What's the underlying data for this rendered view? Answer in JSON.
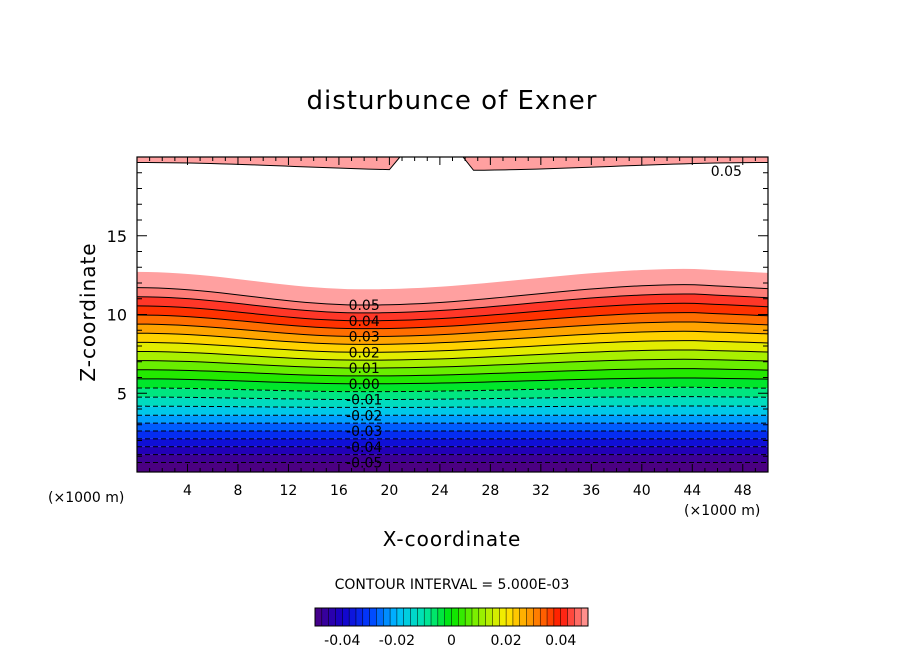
{
  "chart_data": {
    "type": "heatmap",
    "title": "disturbunce of Exner",
    "xlabel": "X-coordinate",
    "ylabel": "Z-coordinate",
    "x_unit": "(×1000 m)",
    "z_unit": "(×1000 m)",
    "xlim": [
      0,
      50
    ],
    "ylim": [
      0,
      20
    ],
    "x_ticks": [
      4,
      8,
      12,
      16,
      20,
      24,
      28,
      32,
      36,
      40,
      44,
      48
    ],
    "y_ticks": [
      5,
      10,
      15
    ],
    "contour_interval_text": "CONTOUR INTERVAL = 5.000E-03",
    "colorbar": {
      "range": [
        -0.05,
        0.05
      ],
      "ticks": [
        "-0.04",
        "-0.02",
        "0",
        "0.02",
        "0.04"
      ],
      "colormap": "rainbow"
    },
    "contour_labels": [
      "0.05",
      "0.05",
      "0.04",
      "0.03",
      "0.02",
      "0.01",
      "0.00",
      "-0.01",
      "-0.02",
      "-0.03",
      "-0.04",
      "-0.05"
    ],
    "upper_contour_label": "0.05",
    "notes": "Exner disturbance increases upward; contours bow downward near x≈16–20 and rise near x≈44. Negative contours dashed."
  },
  "colors": {
    "low": "#4b0082",
    "mid": "#00ff00",
    "high": "#ff0000",
    "peak": "#ff9a9a"
  }
}
